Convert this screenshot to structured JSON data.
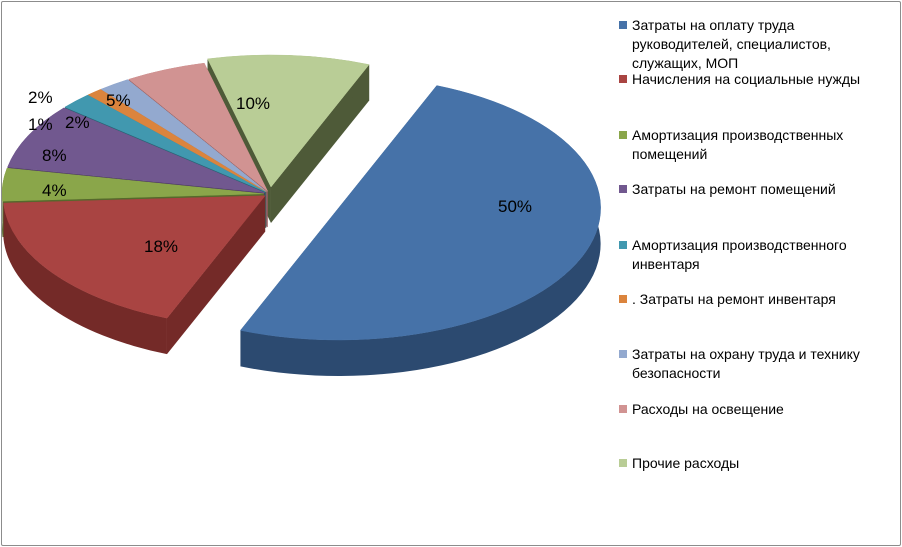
{
  "chart_data": {
    "type": "pie",
    "style": "3d-exploded",
    "title": "",
    "legend_position": "right",
    "slices": [
      {
        "name": "Затраты на оплату труда руководителей, специалистов, служащих, МОП",
        "value": 50,
        "label": "50%",
        "color": "#4672A8",
        "side": "#2C4A70"
      },
      {
        "name": "Начисления на социальные нужды",
        "value": 18,
        "label": "18%",
        "color": "#A94442",
        "side": "#742A28"
      },
      {
        "name": "Амортизация производственных помещений",
        "value": 4,
        "label": "4%",
        "color": "#8AA64A",
        "side": "#56692C"
      },
      {
        "name": "Затраты на ремонт помещений",
        "value": 8,
        "label": "8%",
        "color": "#71588F",
        "side": "#4A3760"
      },
      {
        "name": "Амортизация производственного инвентаря",
        "value": 2,
        "label": "2%",
        "color": "#4198AF",
        "side": "#276373"
      },
      {
        "name": ". Затраты на ремонт инвентаря",
        "value": 1,
        "label": "1%",
        "color": "#DB843D",
        "side": "#9A5522"
      },
      {
        "name": "Затраты на охрану труда и технику безопасности",
        "value": 2,
        "label": "2%",
        "color": "#93A9CF",
        "side": "#5E7196"
      },
      {
        "name": "Расходы на освещение",
        "value": 5,
        "label": "5%",
        "color": "#D19392",
        "side": "#9A5E5D"
      },
      {
        "name": "Прочие расходы",
        "value": 10,
        "label": "10%",
        "color": "#B9CD96",
        "side": "#4E5A38"
      }
    ]
  }
}
